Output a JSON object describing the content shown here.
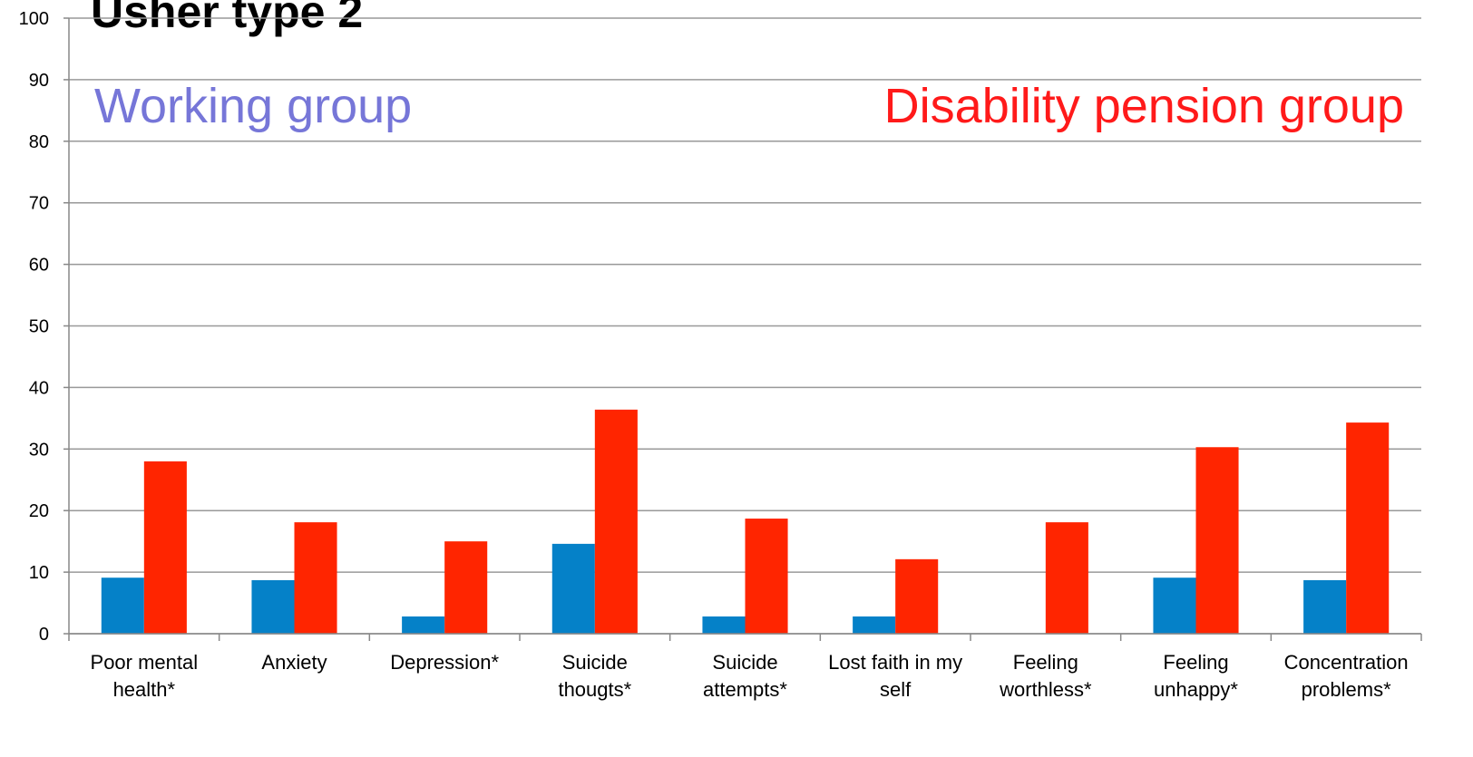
{
  "chart_data": {
    "type": "bar",
    "title": "Usher type 2",
    "annotations": [
      {
        "text": "Working group",
        "color": "#7676d8"
      },
      {
        "text": "Disability pension group",
        "color": "#ff1a1a"
      }
    ],
    "categories": [
      "Poor mental health*",
      "Anxiety",
      "Depression*",
      "Suicide thougts*",
      "Suicide attempts*",
      "Lost faith in my self",
      "Feeling worthless*",
      "Feeling unhappy*",
      "Concentration problems*"
    ],
    "series": [
      {
        "color": "#0581c8",
        "values": [
          9.1,
          8.7,
          2.8,
          14.6,
          2.8,
          2.8,
          0,
          9.1,
          8.7
        ]
      },
      {
        "color": "#ff2500",
        "values": [
          28.0,
          18.1,
          15.0,
          36.4,
          18.7,
          12.1,
          18.1,
          30.3,
          34.3
        ]
      }
    ],
    "ylim": [
      0,
      100
    ],
    "yticks": [
      0,
      10,
      20,
      30,
      40,
      50,
      60,
      70,
      80,
      90,
      100
    ],
    "grid": true
  }
}
